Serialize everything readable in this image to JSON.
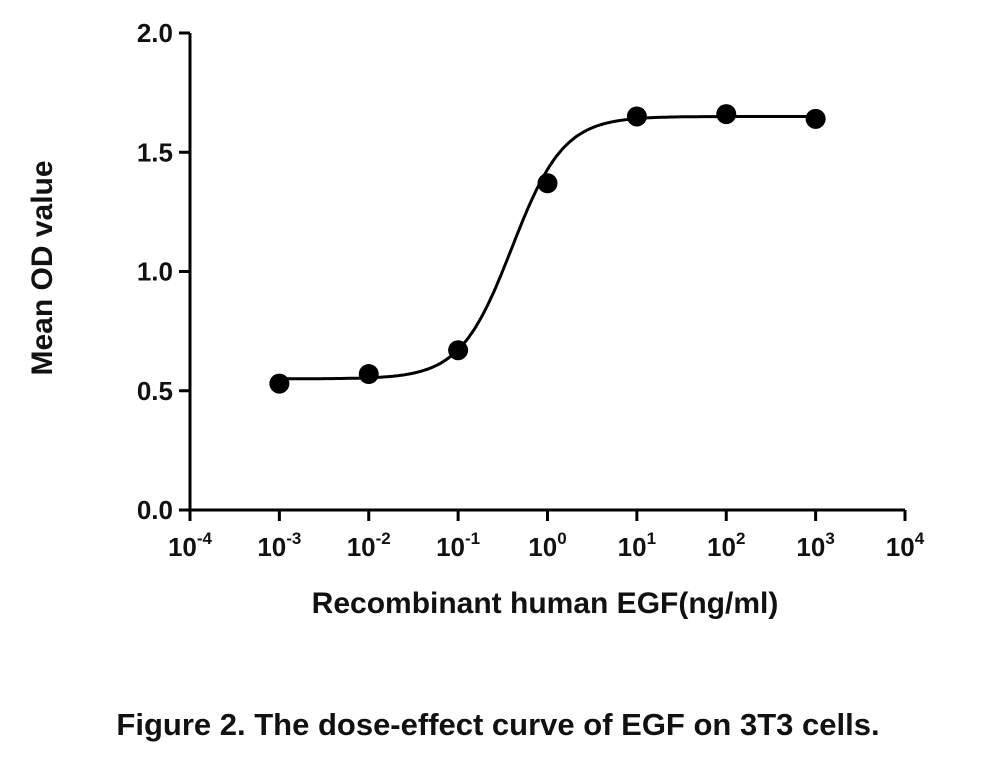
{
  "chart_data": {
    "type": "scatter",
    "xlabel": "Recombinant human EGF(ng/ml)",
    "ylabel": "Mean OD value",
    "caption": "Figure 2. The dose-effect curve of EGF on 3T3 cells.",
    "x_scale": "log",
    "xlim": [
      0.0001,
      10000
    ],
    "ylim": [
      0,
      2.0
    ],
    "x_ticks": [
      {
        "base": "10",
        "exp": "-4",
        "value": 0.0001
      },
      {
        "base": "10",
        "exp": "-3",
        "value": 0.001
      },
      {
        "base": "10",
        "exp": "-2",
        "value": 0.01
      },
      {
        "base": "10",
        "exp": "-1",
        "value": 0.1
      },
      {
        "base": "10",
        "exp": "0",
        "value": 1
      },
      {
        "base": "10",
        "exp": "1",
        "value": 10
      },
      {
        "base": "10",
        "exp": "2",
        "value": 100
      },
      {
        "base": "10",
        "exp": "3",
        "value": 1000
      },
      {
        "base": "10",
        "exp": "4",
        "value": 10000
      }
    ],
    "y_ticks": [
      {
        "label": "0.0",
        "value": 0.0
      },
      {
        "label": "0.5",
        "value": 0.5
      },
      {
        "label": "1.0",
        "value": 1.0
      },
      {
        "label": "1.5",
        "value": 1.5
      },
      {
        "label": "2.0",
        "value": 2.0
      }
    ],
    "grid": false,
    "legend": "none",
    "series": [
      {
        "x": [
          0.001,
          0.01,
          0.1,
          1,
          10,
          100,
          1000
        ],
        "y": [
          0.53,
          0.57,
          0.67,
          1.37,
          1.65,
          1.66,
          1.64
        ]
      }
    ],
    "fit_curve": {
      "type": "sigmoidal",
      "bottom": 0.55,
      "top": 1.65,
      "ec50": 0.4,
      "hill": 1.5
    },
    "colors": {
      "points": "#000000",
      "line": "#000000",
      "axes": "#000000"
    }
  }
}
